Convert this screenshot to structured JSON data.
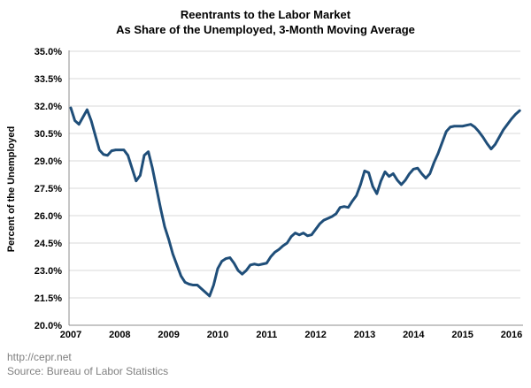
{
  "title": {
    "line1": "Reentrants to the Labor Market",
    "line2": "As Share of the Unemployed, 3-Month Moving Average"
  },
  "footer": {
    "url": "http://cepr.net",
    "source": "Source: Bureau of Labor Statistics"
  },
  "colors": {
    "line": "#1F4E79",
    "gridline": "#D9D9D9",
    "axis": "#8C8C8C",
    "tick_label": "#000000",
    "footer_text": "#808080",
    "background": "#FFFFFF"
  },
  "chart_data": {
    "type": "line",
    "title": "Reentrants to the Labor Market",
    "subtitle": "As Share of the Unemployed, 3-Month Moving Average",
    "xlabel": "",
    "ylabel": "Percent of the Unemployed",
    "ylim": [
      20.0,
      35.0
    ],
    "ytick_step": 1.5,
    "yticks": [
      "35.0%",
      "33.5%",
      "32.0%",
      "30.5%",
      "29.0%",
      "27.5%",
      "26.0%",
      "24.5%",
      "23.0%",
      "21.5%",
      "20.0%"
    ],
    "xticks": [
      "2007",
      "2008",
      "2009",
      "2010",
      "2011",
      "2012",
      "2013",
      "2014",
      "2015",
      "2016"
    ],
    "grid": "horizontal",
    "legend": "none",
    "x_start_year": 2007,
    "points_per_year": 12,
    "series": [
      {
        "name": "Reentrants as share of the unemployed, 3-month moving average (%)",
        "values": [
          31.9,
          31.2,
          31.0,
          31.4,
          31.8,
          31.2,
          30.4,
          29.6,
          29.35,
          29.3,
          29.55,
          29.6,
          29.6,
          29.6,
          29.3,
          28.6,
          27.9,
          28.2,
          29.3,
          29.5,
          28.6,
          27.5,
          26.4,
          25.4,
          24.7,
          23.9,
          23.3,
          22.7,
          22.35,
          22.25,
          22.2,
          22.2,
          22.0,
          21.8,
          21.6,
          22.2,
          23.1,
          23.5,
          23.65,
          23.7,
          23.4,
          23.0,
          22.8,
          23.0,
          23.3,
          23.35,
          23.3,
          23.35,
          23.4,
          23.75,
          24.0,
          24.15,
          24.35,
          24.5,
          24.85,
          25.05,
          24.95,
          25.05,
          24.9,
          24.95,
          25.25,
          25.55,
          25.75,
          25.85,
          25.95,
          26.1,
          26.45,
          26.5,
          26.45,
          26.8,
          27.1,
          27.7,
          28.45,
          28.35,
          27.6,
          27.2,
          27.9,
          28.4,
          28.15,
          28.3,
          27.95,
          27.7,
          27.95,
          28.3,
          28.55,
          28.6,
          28.3,
          28.05,
          28.3,
          28.9,
          29.4,
          30.0,
          30.6,
          30.85,
          30.9,
          30.9,
          30.9,
          30.95,
          31.0,
          30.85,
          30.6,
          30.3,
          29.95,
          29.65,
          29.9,
          30.3,
          30.7,
          31.0,
          31.3,
          31.55,
          31.75
        ]
      }
    ]
  }
}
